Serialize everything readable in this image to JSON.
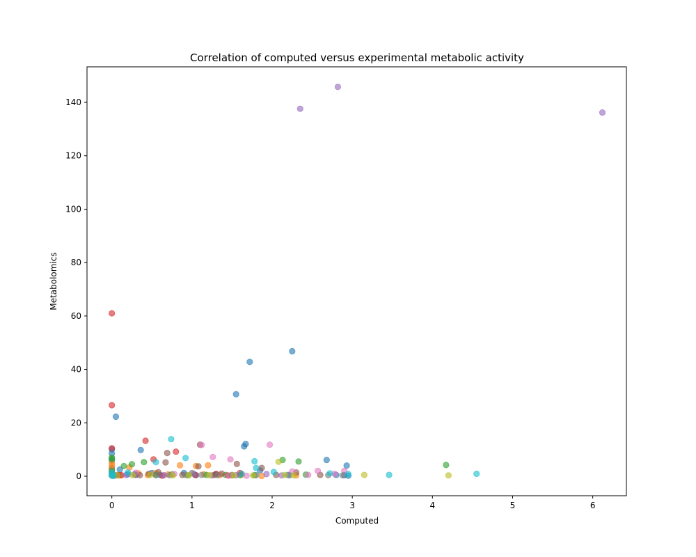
{
  "chart_data": {
    "type": "scatter",
    "title": "Correlation of computed versus experimental metabolic activity",
    "xlabel": "Computed",
    "ylabel": "Metabolomics",
    "xlim": [
      -0.31,
      6.42
    ],
    "ylim": [
      -7.3,
      153.3
    ],
    "xticks": [
      0,
      1,
      2,
      3,
      4,
      5,
      6
    ],
    "yticks": [
      0,
      20,
      40,
      60,
      80,
      100,
      120,
      140
    ],
    "grid": false,
    "legend": "none",
    "marker_alpha": 0.6,
    "series": [
      {
        "color": "#1f77b4",
        "points": [
          [
            0,
            10
          ],
          [
            0,
            8.5
          ],
          [
            0,
            6
          ],
          [
            0,
            3
          ],
          [
            0,
            1
          ],
          [
            0,
            0.3
          ],
          [
            0.05,
            22.3
          ],
          [
            0.1,
            2.5
          ],
          [
            0.2,
            0.7
          ],
          [
            0.3,
            0.5
          ],
          [
            0.36,
            9.8
          ],
          [
            0.5,
            1.2
          ],
          [
            0.6,
            0.5
          ],
          [
            0.9,
            1.2
          ],
          [
            1.05,
            0.4
          ],
          [
            1.3,
            0.8
          ],
          [
            1.55,
            30.7
          ],
          [
            1.65,
            11.2
          ],
          [
            1.67,
            12.1
          ],
          [
            1.72,
            42.8
          ],
          [
            1.85,
            2.1
          ],
          [
            2.2,
            0.5
          ],
          [
            2.25,
            46.8
          ],
          [
            2.68,
            6.1
          ],
          [
            2.8,
            0.5
          ],
          [
            2.9,
            0.4
          ],
          [
            2.93,
            4
          ],
          [
            2.95,
            0.2
          ]
        ]
      },
      {
        "color": "#ff7f0e",
        "points": [
          [
            0,
            5
          ],
          [
            0,
            4
          ],
          [
            0,
            2.5
          ],
          [
            0,
            1.5
          ],
          [
            0,
            0.5
          ],
          [
            0.1,
            0.3
          ],
          [
            0.22,
            3.3
          ],
          [
            0.33,
            1.1
          ],
          [
            0.45,
            0.4
          ],
          [
            0.55,
            1.2
          ],
          [
            0.7,
            0.7
          ],
          [
            0.85,
            4.1
          ],
          [
            1.05,
            3.8
          ],
          [
            1.15,
            0.7
          ],
          [
            1.2,
            4.1
          ],
          [
            1.35,
            0.5
          ],
          [
            1.5,
            0.3
          ],
          [
            1.62,
            0.6
          ],
          [
            1.87,
            0.1
          ],
          [
            2.3,
            0.3
          ]
        ]
      },
      {
        "color": "#2ca02c",
        "points": [
          [
            0,
            7
          ],
          [
            0,
            6.5
          ],
          [
            0,
            2
          ],
          [
            0.15,
            3.8
          ],
          [
            0.25,
            4.5
          ],
          [
            0.4,
            5.3
          ],
          [
            0.55,
            0.5
          ],
          [
            0.75,
            0.7
          ],
          [
            0.95,
            0.3
          ],
          [
            1.18,
            0.5
          ],
          [
            1.42,
            0.5
          ],
          [
            1.6,
            0.4
          ],
          [
            1.78,
            0.4
          ],
          [
            2.13,
            6.1
          ],
          [
            2.33,
            5.5
          ],
          [
            2.42,
            0.6
          ],
          [
            4.17,
            4.2
          ]
        ]
      },
      {
        "color": "#d62728",
        "points": [
          [
            0,
            61
          ],
          [
            0,
            26.6
          ],
          [
            0,
            10.5
          ],
          [
            0.05,
            0.3
          ],
          [
            0.12,
            0.4
          ],
          [
            0.42,
            13.3
          ],
          [
            0.52,
            6.3
          ],
          [
            0.63,
            0.2
          ],
          [
            0.8,
            9.2
          ],
          [
            1.04,
            0.5
          ],
          [
            1.3,
            0.8
          ],
          [
            1.45,
            0.3
          ],
          [
            1.6,
            1.2
          ]
        ]
      },
      {
        "color": "#9467bd",
        "points": [
          [
            2.35,
            137.6
          ],
          [
            2.82,
            145.8
          ],
          [
            6.12,
            136.2
          ],
          [
            0.18,
            0.5
          ],
          [
            0.3,
            0.5
          ],
          [
            0.65,
            0.4
          ],
          [
            1.02,
            0.9
          ],
          [
            1.25,
            0.3
          ],
          [
            1.55,
            0.4
          ],
          [
            1.93,
            0.8
          ],
          [
            2.12,
            0.3
          ]
        ]
      },
      {
        "color": "#8c564b",
        "points": [
          [
            0.08,
            0.5
          ],
          [
            0.35,
            0.4
          ],
          [
            0.46,
            0.9
          ],
          [
            0.58,
            1.5
          ],
          [
            0.67,
            5.2
          ],
          [
            0.69,
            8.7
          ],
          [
            0.88,
            0.5
          ],
          [
            1.08,
            3.7
          ],
          [
            1.1,
            11.8
          ],
          [
            1.28,
            0.5
          ],
          [
            1.37,
            1
          ],
          [
            1.56,
            4.6
          ],
          [
            1.87,
            3.1
          ],
          [
            2.05,
            0.5
          ],
          [
            2.3,
            1.4
          ],
          [
            2.6,
            0.5
          ]
        ]
      },
      {
        "color": "#e377c2",
        "points": [
          [
            0.3,
            1.3
          ],
          [
            0.78,
            0.8
          ],
          [
            1.12,
            11.7
          ],
          [
            1.26,
            7.2
          ],
          [
            1.46,
            0.2
          ],
          [
            1.48,
            6.3
          ],
          [
            1.68,
            0.2
          ],
          [
            1.97,
            11.8
          ],
          [
            2.25,
            1.8
          ],
          [
            2.45,
            0.5
          ],
          [
            2.57,
            2
          ],
          [
            2.78,
            0.9
          ],
          [
            2.9,
            2
          ]
        ]
      },
      {
        "color": "#7f7f7f",
        "points": [
          [
            0.02,
            0.6
          ],
          [
            0.28,
            0.7
          ],
          [
            0.55,
            0.4
          ],
          [
            0.72,
            0.4
          ],
          [
            0.92,
            0.5
          ],
          [
            1,
            1.2
          ],
          [
            1.12,
            0.5
          ],
          [
            1.32,
            0.4
          ],
          [
            1.5,
            0.5
          ],
          [
            1.8,
            0.4
          ],
          [
            2.22,
            0.3
          ],
          [
            2.7,
            0.4
          ],
          [
            2.88,
            0.3
          ]
        ]
      },
      {
        "color": "#bcbd22",
        "points": [
          [
            0.07,
            0.3
          ],
          [
            0.26,
            0.4
          ],
          [
            0.48,
            0.5
          ],
          [
            0.76,
            0.3
          ],
          [
            0.96,
            0.4
          ],
          [
            1.22,
            0.4
          ],
          [
            1.52,
            0.3
          ],
          [
            1.76,
            0.3
          ],
          [
            2.08,
            5.4
          ],
          [
            2.16,
            0.5
          ],
          [
            2.27,
            0.3
          ],
          [
            3.15,
            0.5
          ],
          [
            4.2,
            0.3
          ]
        ]
      },
      {
        "color": "#17becf",
        "points": [
          [
            0,
            1.5
          ],
          [
            0,
            0.8
          ],
          [
            0,
            0.2
          ],
          [
            0.02,
            0.1
          ],
          [
            0.2,
            1.4
          ],
          [
            0.55,
            5.3
          ],
          [
            0.74,
            13.9
          ],
          [
            0.92,
            6.8
          ],
          [
            1.62,
            0.9
          ],
          [
            1.78,
            5.6
          ],
          [
            1.8,
            3.1
          ],
          [
            2.02,
            1.6
          ],
          [
            2.72,
            1.1
          ],
          [
            2.95,
            0.8
          ],
          [
            3.46,
            0.5
          ],
          [
            4.55,
            0.9
          ]
        ]
      }
    ]
  }
}
